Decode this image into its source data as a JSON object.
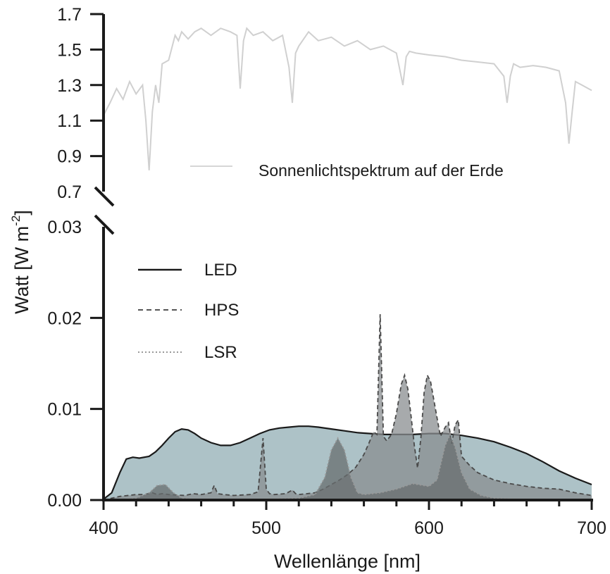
{
  "chart_data": {
    "type": "area",
    "xlabel": "Wellenlänge [nm]",
    "ylabel_main": "Watt [W m",
    "ylabel_sup": "-2",
    "ylabel_close": "]",
    "xlim": [
      400,
      700
    ],
    "x_ticks": [
      "400",
      "500",
      "600",
      "700"
    ],
    "x_tick_values": [
      400,
      500,
      600,
      700
    ],
    "upper_panel": {
      "ylim": [
        0.7,
        1.7
      ],
      "y_ticks": [
        "1.7",
        "1.5",
        "1.3",
        "1.1",
        "0.9",
        "0.7"
      ],
      "y_tick_values": [
        1.7,
        1.5,
        1.3,
        1.1,
        0.9,
        0.7
      ],
      "series": [
        {
          "name": "Sonnenlichtspektrum auf der Erde",
          "color": "#d0d0d0",
          "x": [
            400,
            404,
            408,
            412,
            416,
            420,
            424,
            426,
            428,
            430,
            432,
            434,
            436,
            440,
            444,
            446,
            448,
            452,
            456,
            460,
            466,
            472,
            478,
            482,
            484,
            486,
            488,
            492,
            498,
            504,
            510,
            514,
            516,
            518,
            520,
            526,
            532,
            540,
            548,
            556,
            564,
            572,
            580,
            584,
            586,
            588,
            592,
            600,
            610,
            620,
            630,
            640,
            646,
            648,
            650,
            652,
            656,
            664,
            672,
            680,
            684,
            686,
            688,
            690,
            694,
            700
          ],
          "y": [
            1.13,
            1.2,
            1.28,
            1.22,
            1.32,
            1.25,
            1.3,
            1.1,
            0.82,
            1.15,
            1.3,
            1.2,
            1.42,
            1.44,
            1.58,
            1.55,
            1.6,
            1.56,
            1.6,
            1.62,
            1.58,
            1.62,
            1.6,
            1.58,
            1.28,
            1.55,
            1.62,
            1.58,
            1.6,
            1.55,
            1.58,
            1.4,
            1.2,
            1.48,
            1.52,
            1.6,
            1.55,
            1.57,
            1.52,
            1.55,
            1.5,
            1.52,
            1.48,
            1.3,
            1.46,
            1.49,
            1.48,
            1.47,
            1.46,
            1.44,
            1.43,
            1.42,
            1.35,
            1.2,
            1.35,
            1.42,
            1.4,
            1.41,
            1.4,
            1.38,
            1.2,
            0.97,
            1.15,
            1.32,
            1.3,
            1.27
          ]
        }
      ]
    },
    "lower_panel": {
      "ylim": [
        0,
        0.03
      ],
      "y_ticks": [
        "0.03",
        "0.02",
        "0.01",
        "0.00"
      ],
      "y_tick_values": [
        0.03,
        0.02,
        0.01,
        0.0
      ],
      "series": [
        {
          "name": "LED",
          "line_style": "solid",
          "fill": "#a9bfc4",
          "stroke": "#1a1a1a",
          "x": [
            400,
            405,
            410,
            414,
            418,
            422,
            428,
            432,
            436,
            440,
            444,
            448,
            452,
            456,
            460,
            466,
            472,
            478,
            484,
            490,
            496,
            502,
            508,
            514,
            520,
            526,
            532,
            540,
            548,
            556,
            564,
            572,
            580,
            590,
            600,
            610,
            620,
            630,
            640,
            650,
            660,
            670,
            680,
            690,
            700
          ],
          "y": [
            0.0001,
            0.0008,
            0.003,
            0.0045,
            0.0047,
            0.0046,
            0.0048,
            0.0053,
            0.006,
            0.0068,
            0.0075,
            0.0078,
            0.0077,
            0.0073,
            0.0068,
            0.0063,
            0.006,
            0.006,
            0.0063,
            0.0068,
            0.0073,
            0.0077,
            0.0079,
            0.008,
            0.0081,
            0.0081,
            0.008,
            0.0078,
            0.0076,
            0.0074,
            0.0073,
            0.0072,
            0.0072,
            0.0072,
            0.0073,
            0.0073,
            0.0071,
            0.0068,
            0.0064,
            0.0058,
            0.0051,
            0.0042,
            0.0032,
            0.0024,
            0.0017
          ]
        },
        {
          "name": "HPS",
          "line_style": "dashed",
          "fill": "#8a8e90",
          "stroke": "#4a4a4a",
          "x": [
            400,
            410,
            420,
            425,
            430,
            433,
            436,
            440,
            450,
            455,
            460,
            466,
            468,
            470,
            474,
            480,
            490,
            495,
            498,
            500,
            502,
            505,
            512,
            516,
            518,
            520,
            530,
            535,
            540,
            545,
            550,
            555,
            560,
            563,
            566,
            568,
            570,
            572,
            574,
            577,
            580,
            583,
            585,
            587,
            589,
            591,
            593,
            595,
            597,
            599,
            601,
            604,
            607,
            610,
            612,
            614,
            616,
            618,
            620,
            625,
            630,
            640,
            650,
            660,
            670,
            680,
            690,
            700
          ],
          "y": [
            0.0,
            0.0004,
            0.0006,
            0.0006,
            0.0008,
            0.0006,
            0.0007,
            0.0006,
            0.0005,
            0.0007,
            0.0006,
            0.0008,
            0.0016,
            0.0007,
            0.0006,
            0.0005,
            0.0006,
            0.0009,
            0.0068,
            0.0012,
            0.0007,
            0.0006,
            0.0007,
            0.0011,
            0.0007,
            0.0006,
            0.0008,
            0.0012,
            0.0017,
            0.0022,
            0.0028,
            0.0036,
            0.005,
            0.0062,
            0.0075,
            0.0072,
            0.0204,
            0.007,
            0.0065,
            0.0072,
            0.0095,
            0.0127,
            0.0137,
            0.0122,
            0.0092,
            0.006,
            0.0035,
            0.0068,
            0.0118,
            0.0137,
            0.013,
            0.01,
            0.007,
            0.008,
            0.0085,
            0.0062,
            0.0082,
            0.0088,
            0.0048,
            0.0038,
            0.003,
            0.0022,
            0.0018,
            0.0015,
            0.0013,
            0.0012,
            0.0008,
            0.0005
          ]
        },
        {
          "name": "LSR",
          "line_style": "dotted",
          "fill": "#686d6f",
          "stroke": "#999999",
          "x": [
            400,
            420,
            428,
            433,
            438,
            443,
            448,
            460,
            490,
            520,
            530,
            536,
            540,
            544,
            548,
            552,
            556,
            560,
            570,
            580,
            590,
            600,
            605,
            610,
            613,
            616,
            620,
            625,
            632,
            640,
            660,
            680,
            700
          ],
          "y": [
            0.0,
            0.0002,
            0.0008,
            0.0016,
            0.0017,
            0.0008,
            0.0002,
            0.0001,
            0.0001,
            0.0002,
            0.0006,
            0.0025,
            0.0055,
            0.0068,
            0.0055,
            0.0025,
            0.0008,
            0.0006,
            0.0008,
            0.0012,
            0.0018,
            0.0015,
            0.0022,
            0.006,
            0.0072,
            0.0058,
            0.003,
            0.0012,
            0.0005,
            0.0002,
            0.0001,
            0.0001,
            0.0001
          ]
        }
      ]
    }
  }
}
